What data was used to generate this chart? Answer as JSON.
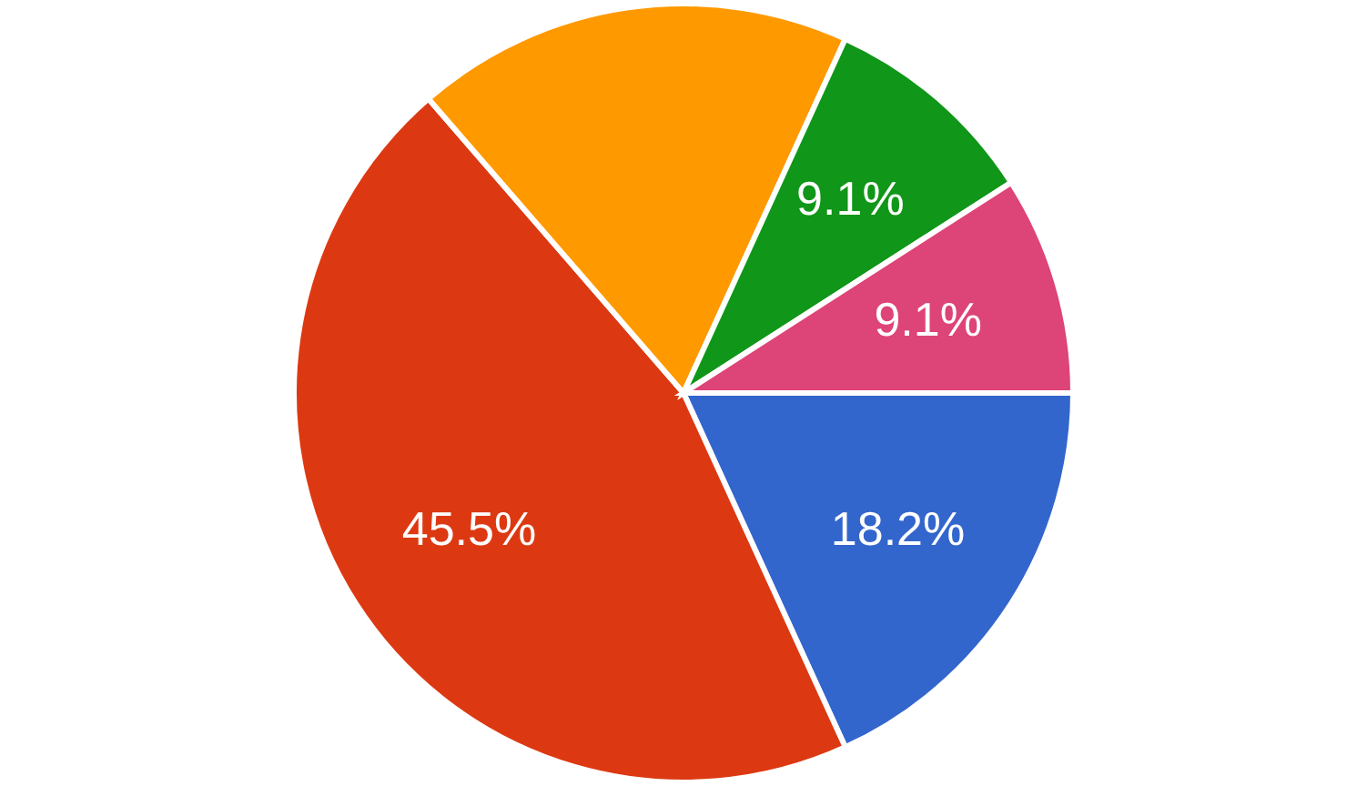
{
  "chart_data": {
    "type": "pie",
    "categories": [
      null,
      null,
      null,
      null,
      null
    ],
    "values": [
      18.2,
      45.5,
      18.2,
      9.1,
      9.1
    ],
    "colors": [
      "#3366cc",
      "#dc3912",
      "#ff9900",
      "#109618",
      "#dd4477"
    ],
    "value_labels": [
      "18.2%",
      "45.5%",
      null,
      "9.1%",
      "9.1%"
    ]
  }
}
